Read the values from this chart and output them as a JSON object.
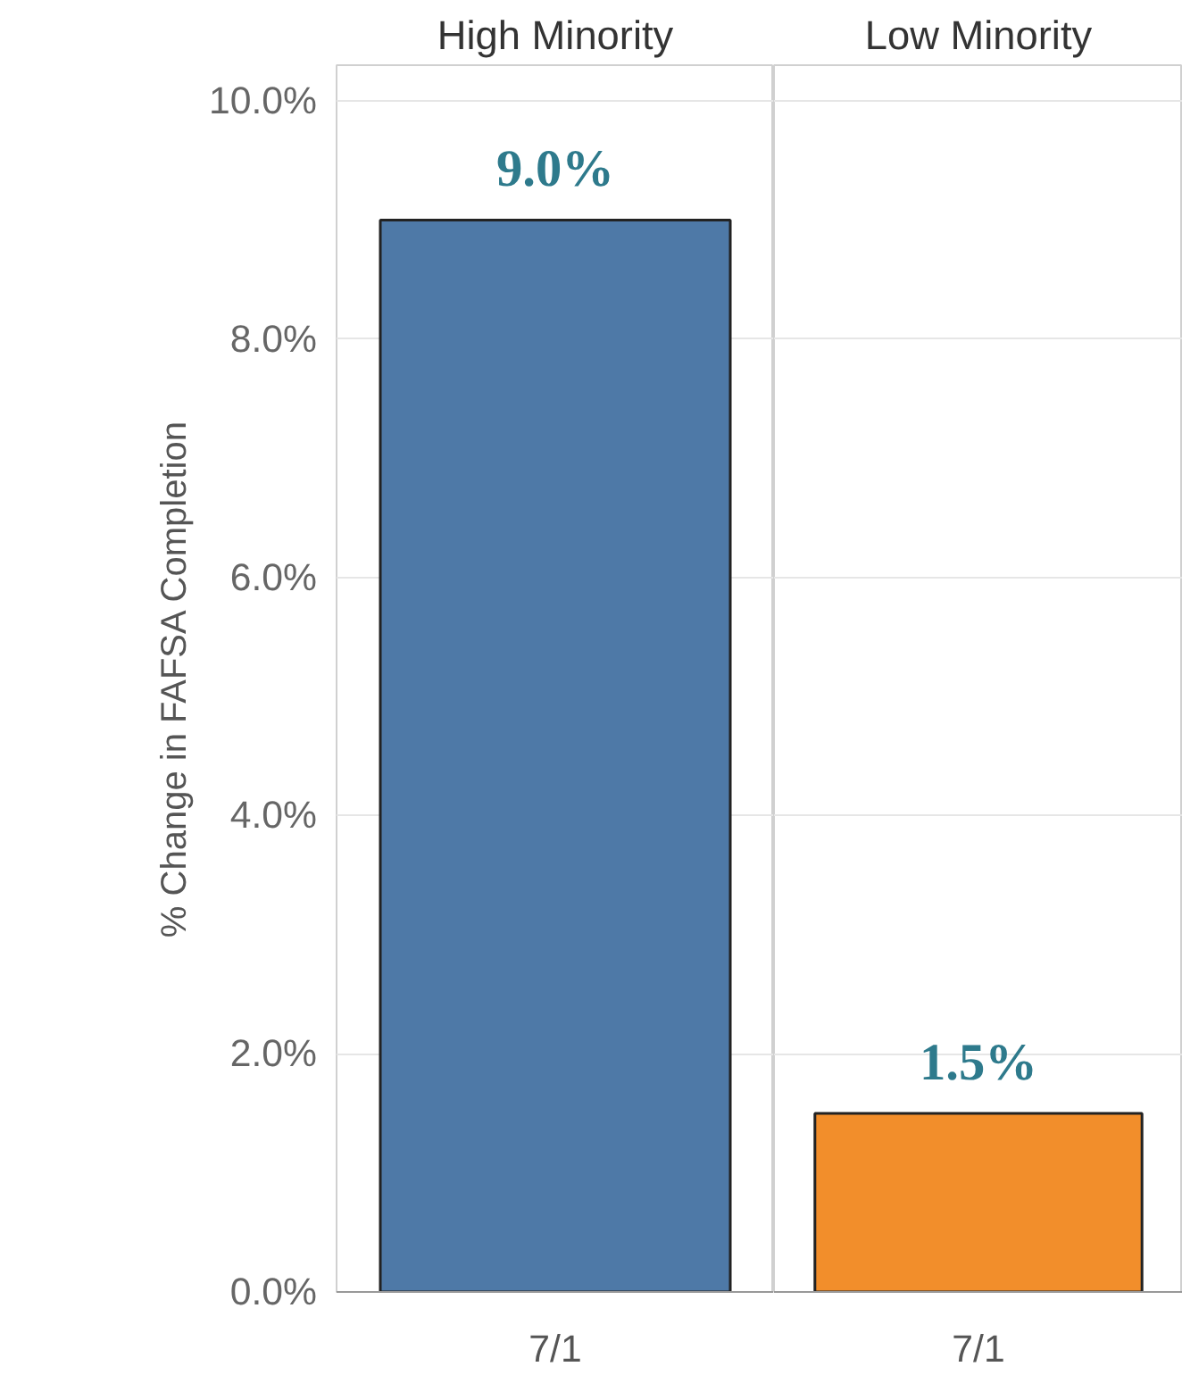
{
  "chart_data": [
    {
      "type": "bar",
      "title": "High Minority",
      "ylabel": "% Change in FAFSA Completion",
      "categories": [
        "7/1"
      ],
      "values": [
        9.0
      ],
      "colors": [
        "#4e79a7"
      ],
      "value_labels": [
        "9.0%"
      ],
      "ylim": [
        0,
        10.3
      ],
      "yticks": [
        {
          "value": 0,
          "label": "0.0%"
        },
        {
          "value": 2,
          "label": "2.0%"
        },
        {
          "value": 4,
          "label": "4.0%"
        },
        {
          "value": 6,
          "label": "6.0%"
        },
        {
          "value": 8,
          "label": "8.0%"
        },
        {
          "value": 10,
          "label": "10.0%"
        }
      ],
      "grid": "y"
    },
    {
      "type": "bar",
      "title": "Low Minority",
      "categories": [
        "7/1"
      ],
      "values": [
        1.5
      ],
      "colors": [
        "#f28e2b"
      ],
      "value_labels": [
        "1.5%"
      ],
      "ylim": [
        0,
        10.3
      ],
      "yticks": [
        {
          "value": 0,
          "label": null
        },
        {
          "value": 2,
          "label": null
        },
        {
          "value": 4,
          "label": null
        },
        {
          "value": 6,
          "label": null
        },
        {
          "value": 8,
          "label": null
        },
        {
          "value": 10,
          "label": null
        }
      ],
      "grid": "y",
      "tick_labels": "x"
    }
  ]
}
